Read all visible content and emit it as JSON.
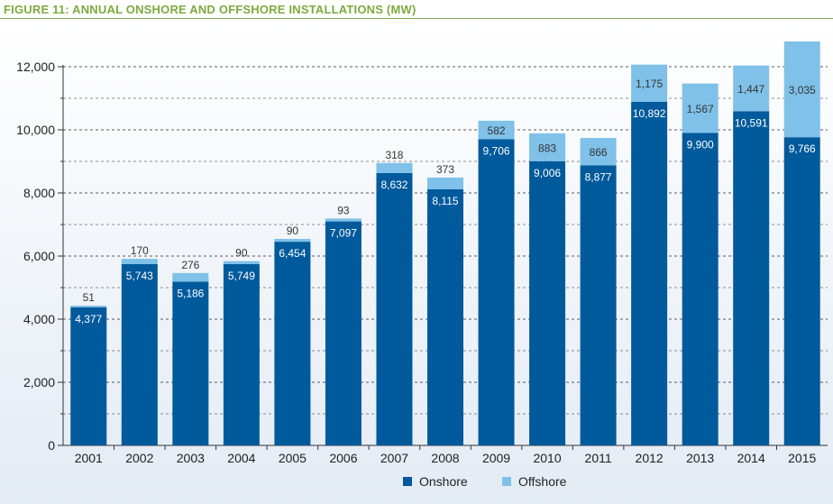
{
  "figure_title": "FIGURE 11: ANNUAL ONSHORE AND OFFSHORE INSTALLATIONS (MW)",
  "colors": {
    "onshore": "#005a9c",
    "offshore": "#7fc1e8",
    "title": "#7bab3f"
  },
  "chart_data": {
    "type": "bar",
    "stacked": true,
    "title": "FIGURE 11: ANNUAL ONSHORE AND OFFSHORE INSTALLATIONS (MW)",
    "xlabel": "",
    "ylabel": "",
    "ylim": [
      0,
      12000
    ],
    "yticks": [
      "0",
      "2,000",
      "4,000",
      "6,000",
      "8,000",
      "10,000",
      "12,000"
    ],
    "grid": true,
    "legend_position": "bottom",
    "categories": [
      "2001",
      "2002",
      "2003",
      "2004",
      "2005",
      "2006",
      "2007",
      "2008",
      "2009",
      "2010",
      "2011",
      "2012",
      "2013",
      "2014",
      "2015"
    ],
    "series": [
      {
        "name": "Onshore",
        "color": "#005a9c",
        "values": [
          4377,
          5743,
          5186,
          5749,
          6454,
          7097,
          8632,
          8115,
          9706,
          9006,
          8877,
          10892,
          9900,
          10591,
          9766
        ],
        "labels": [
          "4,377",
          "5,743",
          "5,186",
          "5,749",
          "6,454",
          "7,097",
          "8,632",
          "8,115",
          "9,706",
          "9,006",
          "8,877",
          "10,892",
          "9,900",
          "10,591",
          "9,766"
        ]
      },
      {
        "name": "Offshore",
        "color": "#7fc1e8",
        "values": [
          51,
          170,
          276,
          90,
          90,
          93,
          318,
          373,
          582,
          883,
          866,
          1175,
          1567,
          1447,
          3035
        ],
        "labels": [
          "51",
          "170",
          "276",
          "90",
          "90",
          "93",
          "318",
          "373",
          "582",
          "883",
          "866",
          "1,175",
          "1,567",
          "1,447",
          "3,035"
        ]
      }
    ]
  }
}
